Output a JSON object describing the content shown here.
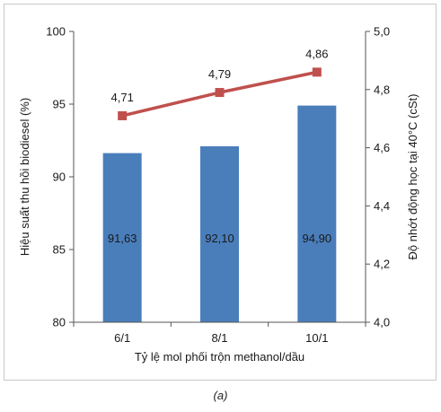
{
  "chart_data": {
    "type": "bar+line",
    "categories": [
      "6/1",
      "8/1",
      "10/1"
    ],
    "xlabel": "Tỷ lệ mol phối trộn methanol/dầu",
    "bar_series": {
      "axis": "left",
      "color": "#4a7ebb",
      "values": [
        91.63,
        92.1,
        94.9
      ],
      "labels": [
        "91,63",
        "92,10",
        "94,90"
      ]
    },
    "line_series": {
      "axis": "right",
      "color": "#c0504d",
      "values": [
        4.71,
        4.79,
        4.86
      ],
      "labels": [
        "4,71",
        "4,79",
        "4,86"
      ]
    },
    "left_axis": {
      "label": "Hiệu suất thu hồi biodiesel (%)",
      "range": [
        80,
        100
      ],
      "ticks": [
        80,
        85,
        90,
        95,
        100
      ],
      "tick_labels": [
        "80",
        "85",
        "90",
        "95",
        "100"
      ]
    },
    "right_axis": {
      "label": "Độ nhớt động học tại 40°C (cSt)",
      "range": [
        4.0,
        5.0
      ],
      "ticks": [
        4.0,
        4.2,
        4.4,
        4.6,
        4.8,
        5.0
      ],
      "tick_labels": [
        "4,0",
        "4,2",
        "4,4",
        "4,6",
        "4,8",
        "5,0"
      ]
    },
    "grid": false,
    "legend": "none"
  },
  "caption": "(a)"
}
